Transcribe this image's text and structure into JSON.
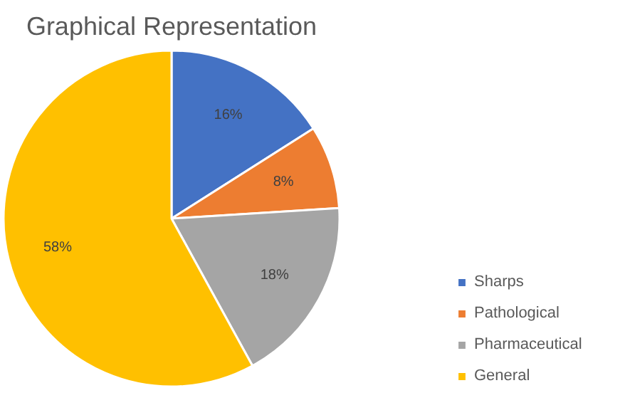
{
  "chart_data": {
    "type": "pie",
    "title": "Graphical Representation",
    "categories": [
      "Sharps",
      "Pathological",
      "Pharmaceutical",
      "General"
    ],
    "values": [
      16,
      8,
      18,
      58
    ],
    "colors": [
      "#4472c4",
      "#ed7d31",
      "#a5a5a5",
      "#ffc000"
    ],
    "value_labels": [
      "16%",
      "8%",
      "18%",
      "58%"
    ],
    "legend": "right"
  }
}
